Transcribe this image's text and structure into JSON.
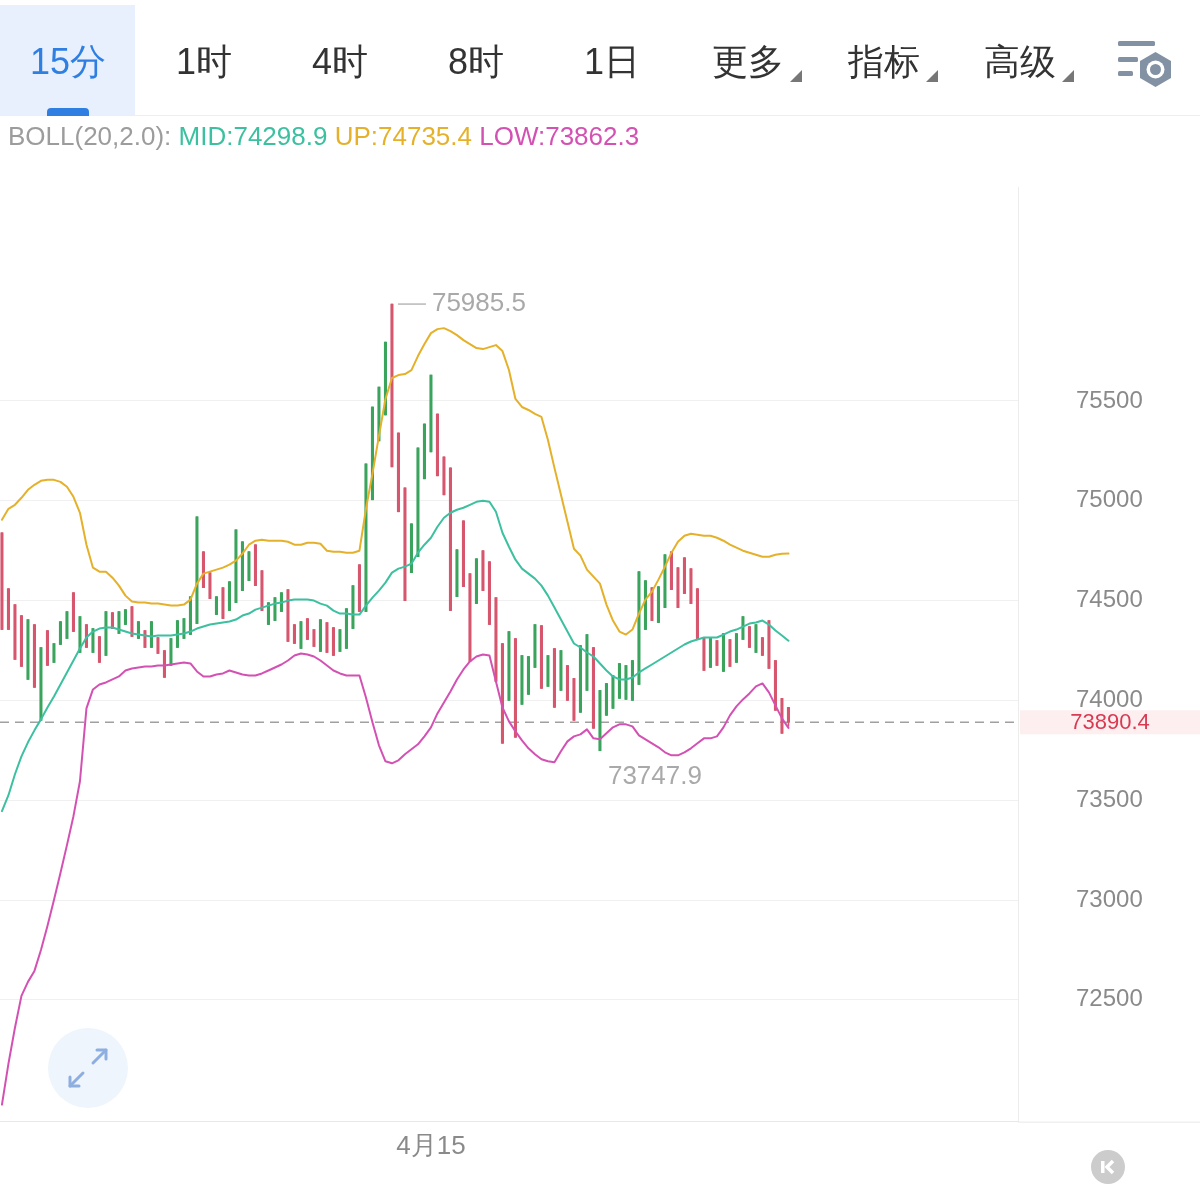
{
  "chart_data": [
    {
      "type": "other",
      "annotations": [
        "15分",
        "1时",
        "4时",
        "8时",
        "1日",
        "更多",
        "指标",
        "高级"
      ]
    },
    {
      "type": "candlestick",
      "annotations": [
        "75985.5",
        "73747.9",
        "73890.4"
      ],
      "legend_title": "BOLL(20,2.0):",
      "legend": "top left",
      "grid": "y",
      "ylim": [
        71890,
        76570
      ],
      "yticks": [
        72500,
        73000,
        73500,
        74000,
        74500,
        75000,
        75500
      ],
      "ref_lines": [
        {
          "axis": "y",
          "value": 73890.4,
          "color": "#a0a0a0",
          "line_style": "dashed"
        }
      ],
      "categories": [
        null,
        null,
        null,
        null,
        null,
        null,
        null,
        null,
        null,
        null,
        null,
        null,
        null,
        null,
        null,
        null,
        null,
        null,
        null,
        null,
        null,
        null,
        null,
        null,
        null,
        null,
        null,
        null,
        null,
        null,
        null,
        null,
        null,
        null,
        null,
        null,
        null,
        null,
        null,
        null,
        null,
        null,
        null,
        null,
        null,
        null,
        null,
        null,
        null,
        null,
        null,
        null,
        null,
        null,
        null,
        null,
        null,
        null,
        null,
        null,
        null,
        null,
        null,
        null,
        null,
        null,
        "4月15",
        null,
        null,
        null,
        null,
        null,
        null,
        null,
        null,
        null,
        null,
        null,
        null,
        null,
        null,
        null,
        null,
        null,
        null,
        null,
        null,
        null,
        null,
        null,
        null,
        null,
        null,
        null,
        null,
        null,
        null,
        null,
        null,
        null,
        null,
        null,
        null,
        null,
        null,
        null,
        null,
        null,
        null,
        null,
        null,
        null,
        null,
        null,
        null,
        null,
        null,
        null,
        null,
        null,
        null,
        null
      ],
      "ohlc": [
        [
          74840,
          74840,
          74355,
          74355
        ],
        [
          74560,
          74560,
          74355,
          74355
        ],
        [
          74480,
          74480,
          74205,
          74205
        ],
        [
          74425,
          74425,
          74170,
          74170
        ],
        [
          74105,
          74405,
          74105,
          74405
        ],
        [
          74380,
          74380,
          74065,
          74065
        ],
        [
          73900,
          74265,
          73900,
          74265
        ],
        [
          74350,
          74350,
          74175,
          74175
        ],
        [
          74190,
          74285,
          74190,
          74285
        ],
        [
          74280,
          74395,
          74280,
          74395
        ],
        [
          74310,
          74445,
          74310,
          74445
        ],
        [
          74540,
          74540,
          74345,
          74345
        ],
        [
          74240,
          74420,
          74240,
          74420
        ],
        [
          74380,
          74380,
          74265,
          74265
        ],
        [
          74240,
          74360,
          74240,
          74360
        ],
        [
          74320,
          74320,
          74190,
          74190
        ],
        [
          74225,
          74445,
          74225,
          74445
        ],
        [
          74440,
          74440,
          74360,
          74360
        ],
        [
          74335,
          74445,
          74335,
          74445
        ],
        [
          74380,
          74455,
          74380,
          74455
        ],
        [
          74470,
          74470,
          74320,
          74320
        ],
        [
          74310,
          74395,
          74310,
          74395
        ],
        [
          74350,
          74350,
          74265,
          74265
        ],
        [
          74265,
          74395,
          74265,
          74395
        ],
        [
          74315,
          74315,
          74235,
          74235
        ],
        [
          74250,
          74250,
          74115,
          74115
        ],
        [
          74175,
          74310,
          74175,
          74310
        ],
        [
          74265,
          74400,
          74265,
          74400
        ],
        [
          74310,
          74410,
          74310,
          74410
        ],
        [
          74330,
          74520,
          74330,
          74520
        ],
        [
          74385,
          74920,
          74385,
          74920
        ],
        [
          74745,
          74745,
          74565,
          74565
        ],
        [
          74640,
          74640,
          74510,
          74510
        ],
        [
          74430,
          74520,
          74430,
          74520
        ],
        [
          74565,
          74565,
          74410,
          74410
        ],
        [
          74450,
          74595,
          74450,
          74595
        ],
        [
          74490,
          74855,
          74490,
          74855
        ],
        [
          74550,
          74795,
          74550,
          74795
        ],
        [
          74600,
          74745,
          74600,
          74745
        ],
        [
          74780,
          74780,
          74575,
          74575
        ],
        [
          74650,
          74650,
          74450,
          74450
        ],
        [
          74380,
          74490,
          74380,
          74490
        ],
        [
          74400,
          74515,
          74400,
          74515
        ],
        [
          74445,
          74540,
          74445,
          74540
        ],
        [
          74555,
          74555,
          74295,
          74295
        ],
        [
          74380,
          74380,
          74285,
          74285
        ],
        [
          74260,
          74395,
          74260,
          74395
        ],
        [
          74410,
          74410,
          74305,
          74305
        ],
        [
          74355,
          74355,
          74270,
          74270
        ],
        [
          74245,
          74405,
          74245,
          74405
        ],
        [
          74390,
          74390,
          74240,
          74240
        ],
        [
          74365,
          74365,
          74225,
          74225
        ],
        [
          74245,
          74355,
          74245,
          74355
        ],
        [
          74260,
          74460,
          74260,
          74460
        ],
        [
          74360,
          74575,
          74360,
          74575
        ],
        [
          74680,
          74680,
          74445,
          74445
        ],
        [
          74445,
          75185,
          74445,
          75185
        ],
        [
          75005,
          75470,
          75005,
          75470
        ],
        [
          75300,
          75570,
          75300,
          75570
        ],
        [
          75430,
          75795,
          75430,
          75795
        ],
        [
          75985.5,
          75985.5,
          75170,
          75170
        ],
        [
          75340,
          75340,
          74945,
          74945
        ],
        [
          75065,
          75065,
          74500,
          74500
        ],
        [
          74640,
          74885,
          74640,
          74885
        ],
        [
          74720,
          75265,
          74720,
          75265
        ],
        [
          75110,
          75385,
          75110,
          75385
        ],
        [
          75245,
          75630,
          75245,
          75630
        ],
        [
          75435,
          75435,
          75125,
          75125
        ],
        [
          75220,
          75220,
          75030,
          75030
        ],
        [
          75165,
          75165,
          74450,
          74450
        ],
        [
          74520,
          74755,
          74520,
          74755
        ],
        [
          74900,
          74900,
          74570,
          74570
        ],
        [
          74635,
          74635,
          74195,
          74195
        ],
        [
          74485,
          74710,
          74485,
          74710
        ],
        [
          74750,
          74750,
          74550,
          74550
        ],
        [
          74695,
          74695,
          74380,
          74380
        ],
        [
          74515,
          74515,
          74095,
          74095
        ],
        [
          74285,
          74285,
          73785,
          73785
        ],
        [
          74000,
          74345,
          74000,
          74345
        ],
        [
          74310,
          74310,
          73815,
          73815
        ],
        [
          73980,
          74225,
          73980,
          74225
        ],
        [
          74030,
          74220,
          74030,
          74220
        ],
        [
          74165,
          74380,
          74165,
          74380
        ],
        [
          74375,
          74375,
          74060,
          74060
        ],
        [
          74070,
          74225,
          74070,
          74225
        ],
        [
          74260,
          74260,
          73965,
          73965
        ],
        [
          74050,
          74250,
          74050,
          74250
        ],
        [
          74175,
          74175,
          74000,
          74000
        ],
        [
          74110,
          74110,
          73900,
          73900
        ],
        [
          73940,
          74275,
          73940,
          74275
        ],
        [
          74050,
          74330,
          74050,
          74330
        ],
        [
          74265,
          74265,
          73860,
          73860
        ],
        [
          73747.9,
          74050,
          73747.9,
          74050
        ],
        [
          73925,
          74085,
          73925,
          74085
        ],
        [
          73960,
          74125,
          73960,
          74125
        ],
        [
          74010,
          74185,
          74010,
          74185
        ],
        [
          74005,
          74175,
          74005,
          74175
        ],
        [
          74000,
          74200,
          74000,
          74200
        ],
        [
          74080,
          74645,
          74080,
          74645
        ],
        [
          74355,
          74600,
          74355,
          74600
        ],
        [
          74565,
          74565,
          74400,
          74400
        ],
        [
          74390,
          74570,
          74390,
          74570
        ],
        [
          74465,
          74730,
          74465,
          74730
        ],
        [
          74745,
          74745,
          74555,
          74555
        ],
        [
          74665,
          74665,
          74465,
          74465
        ],
        [
          74715,
          74715,
          74535,
          74535
        ],
        [
          74660,
          74660,
          74485,
          74485
        ],
        [
          74560,
          74560,
          74305,
          74305
        ],
        [
          74315,
          74315,
          74150,
          74150
        ],
        [
          74165,
          74315,
          74165,
          74315
        ],
        [
          74300,
          74300,
          74175,
          74175
        ],
        [
          74145,
          74335,
          74145,
          74335
        ],
        [
          74305,
          74305,
          74170,
          74170
        ],
        [
          74190,
          74335,
          74190,
          74335
        ],
        [
          74305,
          74420,
          74305,
          74420
        ],
        [
          74370,
          74370,
          74265,
          74265
        ],
        [
          74240,
          74380,
          74240,
          74380
        ],
        [
          74315,
          74315,
          74225,
          74225
        ],
        [
          74400,
          74400,
          74160,
          74160
        ],
        [
          74200,
          74200,
          73950,
          73950
        ],
        [
          74010,
          74010,
          73835,
          73835
        ],
        [
          73965,
          73965,
          73870,
          73890.4
        ]
      ],
      "colors": [
        "#d6566d",
        "#d6566d",
        "#d6566d",
        "#d6566d",
        "#3aa35c",
        "#d6566d",
        "#3aa35c",
        "#d6566d",
        "#3aa35c",
        "#3aa35c",
        "#3aa35c",
        "#d6566d",
        "#3aa35c",
        "#d6566d",
        "#3aa35c",
        "#d6566d",
        "#3aa35c",
        "#d6566d",
        "#3aa35c",
        "#3aa35c",
        "#d6566d",
        "#3aa35c",
        "#d6566d",
        "#3aa35c",
        "#d6566d",
        "#d6566d",
        "#3aa35c",
        "#3aa35c",
        "#3aa35c",
        "#3aa35c",
        "#3aa35c",
        "#d6566d",
        "#d6566d",
        "#3aa35c",
        "#d6566d",
        "#3aa35c",
        "#3aa35c",
        "#3aa35c",
        "#3aa35c",
        "#d6566d",
        "#d6566d",
        "#3aa35c",
        "#3aa35c",
        "#3aa35c",
        "#d6566d",
        "#d6566d",
        "#3aa35c",
        "#d6566d",
        "#d6566d",
        "#3aa35c",
        "#d6566d",
        "#d6566d",
        "#3aa35c",
        "#3aa35c",
        "#3aa35c",
        "#d6566d",
        "#3aa35c",
        "#3aa35c",
        "#3aa35c",
        "#3aa35c",
        "#d6566d",
        "#d6566d",
        "#d6566d",
        "#3aa35c",
        "#3aa35c",
        "#3aa35c",
        "#3aa35c",
        "#d6566d",
        "#d6566d",
        "#d6566d",
        "#3aa35c",
        "#d6566d",
        "#d6566d",
        "#3aa35c",
        "#d6566d",
        "#d6566d",
        "#d6566d",
        "#d6566d",
        "#3aa35c",
        "#d6566d",
        "#3aa35c",
        "#3aa35c",
        "#3aa35c",
        "#d6566d",
        "#3aa35c",
        "#d6566d",
        "#3aa35c",
        "#d6566d",
        "#d6566d",
        "#3aa35c",
        "#3aa35c",
        "#d6566d",
        "#3aa35c",
        "#3aa35c",
        "#3aa35c",
        "#3aa35c",
        "#3aa35c",
        "#3aa35c",
        "#3aa35c",
        "#3aa35c",
        "#d6566d",
        "#3aa35c",
        "#3aa35c",
        "#d6566d",
        "#d6566d",
        "#d6566d",
        "#d6566d",
        "#d6566d",
        "#d6566d",
        "#3aa35c",
        "#d6566d",
        "#3aa35c",
        "#d6566d",
        "#3aa35c",
        "#3aa35c",
        "#d6566d",
        "#3aa35c",
        "#d6566d",
        "#d6566d",
        "#d6566d",
        "#d6566d",
        "#d6566d"
      ],
      "series": [
        {
          "type": "line",
          "name": "MID:74298.9",
          "color": "#3cc0a0",
          "values": [
            73445,
            73525,
            73630,
            73720,
            73790,
            73850,
            73905,
            73965,
            74020,
            74080,
            74140,
            74200,
            74260,
            74315,
            74345,
            74360,
            74365,
            74365,
            74355,
            74345,
            74335,
            74330,
            74325,
            74320,
            74325,
            74325,
            74325,
            74330,
            74335,
            74345,
            74360,
            74370,
            74380,
            74385,
            74390,
            74395,
            74405,
            74425,
            74435,
            74455,
            74465,
            74475,
            74485,
            74490,
            74500,
            74505,
            74505,
            74505,
            74500,
            74485,
            74475,
            74450,
            74435,
            74435,
            74430,
            74430,
            74475,
            74515,
            74550,
            74590,
            74640,
            74660,
            74670,
            74685,
            74740,
            74780,
            74815,
            74870,
            74915,
            74940,
            74955,
            74965,
            74980,
            74995,
            75000,
            74995,
            74945,
            74840,
            74770,
            74705,
            74660,
            74635,
            74610,
            74575,
            74525,
            74465,
            74405,
            74345,
            74285,
            74265,
            74240,
            74220,
            74185,
            74150,
            74120,
            74105,
            74105,
            74115,
            74140,
            74160,
            74180,
            74200,
            74220,
            74240,
            74260,
            74280,
            74295,
            74305,
            74315,
            74315,
            74315,
            74330,
            74345,
            74355,
            74370,
            74385,
            74390,
            74400,
            74380,
            74350,
            74325,
            74298.9
          ]
        },
        {
          "type": "line",
          "name": "UP:74735.4",
          "color": "#e5b12a",
          "values": [
            74905,
            74960,
            74980,
            75015,
            75055,
            75080,
            75100,
            75105,
            75105,
            75095,
            75070,
            75020,
            74940,
            74780,
            74665,
            74645,
            74645,
            74615,
            74575,
            74525,
            74495,
            74490,
            74490,
            74485,
            74485,
            74480,
            74475,
            74475,
            74480,
            74505,
            74585,
            74635,
            74645,
            74655,
            74665,
            74680,
            74700,
            74735,
            74780,
            74800,
            74805,
            74800,
            74800,
            74800,
            74795,
            74780,
            74780,
            74790,
            74790,
            74785,
            74750,
            74745,
            74745,
            74740,
            74740,
            74750,
            74960,
            75135,
            75325,
            75510,
            75615,
            75630,
            75635,
            75655,
            75725,
            75785,
            75840,
            75860,
            75865,
            75850,
            75830,
            75805,
            75785,
            75765,
            75760,
            75770,
            75780,
            75750,
            75655,
            75510,
            75470,
            75455,
            75435,
            75420,
            75305,
            75165,
            75030,
            74895,
            74760,
            74725,
            74655,
            74620,
            74585,
            74480,
            74400,
            74345,
            74330,
            74355,
            74435,
            74505,
            74545,
            74605,
            74670,
            74740,
            74795,
            74825,
            74835,
            74830,
            74825,
            74825,
            74815,
            74800,
            74780,
            74765,
            74750,
            74740,
            74730,
            74720,
            74720,
            74730,
            74735,
            74735.4
          ]
        },
        {
          "type": "line",
          "name": "LOW:73862.3",
          "color": "#d451b4",
          "values": [
            71975,
            72180,
            72360,
            72520,
            72590,
            72645,
            72750,
            72870,
            73000,
            73135,
            73275,
            73420,
            73595,
            73960,
            74055,
            74080,
            74090,
            74105,
            74120,
            74150,
            74160,
            74165,
            74170,
            74170,
            74175,
            74175,
            74180,
            74185,
            74190,
            74185,
            74145,
            74120,
            74120,
            74130,
            74135,
            74150,
            74140,
            74130,
            74125,
            74125,
            74135,
            74150,
            74165,
            74180,
            74200,
            74225,
            74235,
            74230,
            74220,
            74200,
            74175,
            74150,
            74135,
            74125,
            74125,
            74125,
            74015,
            73890,
            73775,
            73695,
            73685,
            73700,
            73730,
            73755,
            73780,
            73820,
            73865,
            73935,
            73990,
            74045,
            74105,
            74155,
            74195,
            74220,
            74230,
            74225,
            74095,
            73965,
            73895,
            73845,
            73800,
            73760,
            73730,
            73705,
            73695,
            73690,
            73745,
            73795,
            73820,
            73830,
            73855,
            73810,
            73805,
            73835,
            73865,
            73880,
            73880,
            73870,
            73825,
            73805,
            73785,
            73765,
            73740,
            73725,
            73725,
            73740,
            73760,
            73785,
            73810,
            73810,
            73820,
            73865,
            73925,
            73970,
            74005,
            74035,
            74070,
            74085,
            74040,
            73975,
            73910,
            73862.3
          ]
        }
      ]
    }
  ]
}
